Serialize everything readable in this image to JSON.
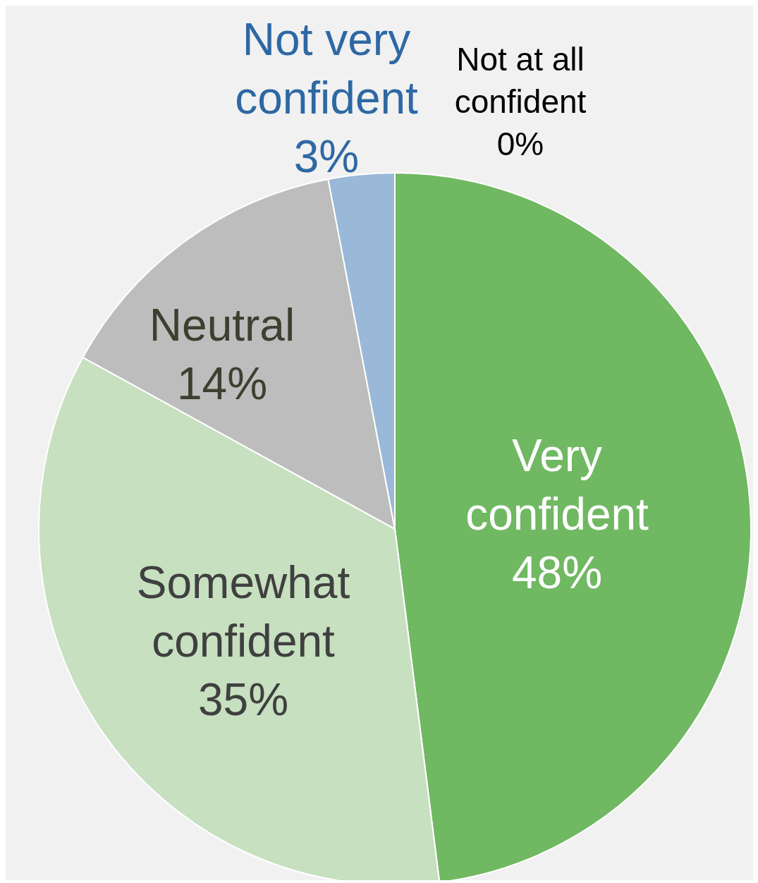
{
  "chart_data": {
    "type": "pie",
    "categories": [
      "Very confident",
      "Somewhat confident",
      "Neutral",
      "Not very confident",
      "Not at all confident"
    ],
    "values": [
      48,
      35,
      14,
      3,
      0
    ],
    "value_labels": [
      "48%",
      "35%",
      "14%",
      "3%",
      "0%"
    ],
    "colors": [
      "#70b862",
      "#c6e0c0",
      "#bdbdbd",
      "#9ab8d8",
      "#1f3b66"
    ]
  }
}
